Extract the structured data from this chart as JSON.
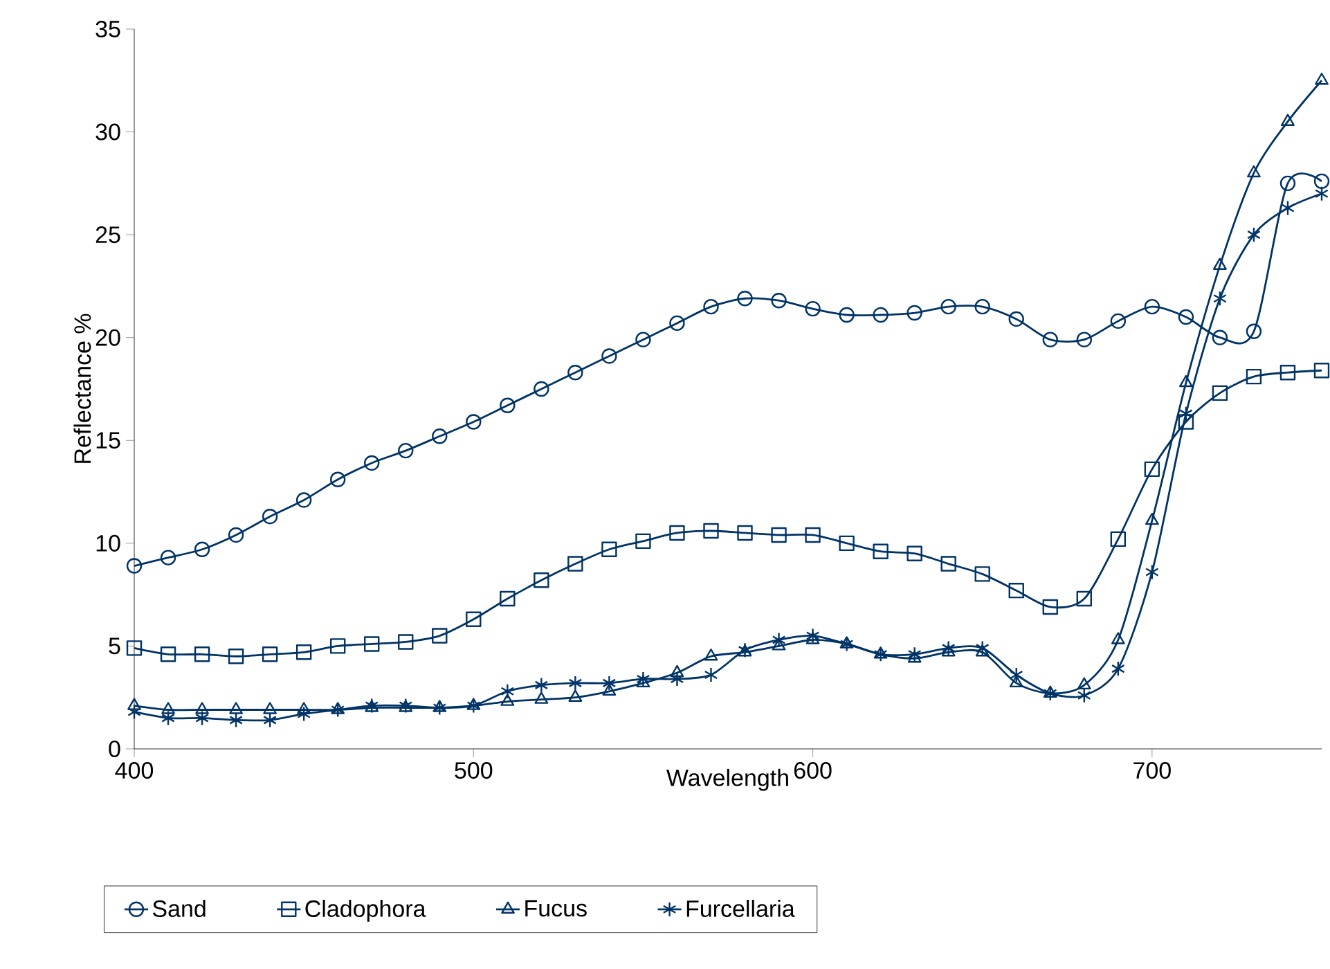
{
  "chart_data": {
    "type": "line",
    "xlabel": "Wavelength",
    "ylabel": "Reflectance %",
    "x": [
      400,
      410,
      420,
      430,
      440,
      450,
      460,
      470,
      480,
      490,
      500,
      510,
      520,
      530,
      540,
      550,
      560,
      570,
      580,
      590,
      600,
      610,
      620,
      630,
      640,
      650,
      660,
      670,
      680,
      690,
      700,
      710,
      720,
      730,
      740,
      750
    ],
    "xlim": [
      400,
      750
    ],
    "xticks": [
      400,
      500,
      600,
      700
    ],
    "ylim": [
      0,
      35
    ],
    "yticks": [
      0,
      5,
      10,
      15,
      20,
      25,
      30,
      35
    ],
    "grid": false,
    "legend": "bottom",
    "line_style": "solid",
    "series": [
      {
        "name": "Sand",
        "color": "#003366",
        "marker": "circle",
        "values": [
          8.9,
          9.3,
          9.7,
          10.4,
          11.3,
          12.1,
          13.1,
          13.9,
          14.5,
          15.2,
          15.9,
          16.7,
          17.5,
          18.3,
          19.1,
          19.9,
          20.7,
          21.5,
          21.9,
          21.8,
          21.4,
          21.1,
          21.1,
          21.2,
          21.5,
          21.5,
          20.9,
          19.9,
          19.9,
          20.8,
          21.5,
          21.0,
          20.0,
          20.3,
          27.5,
          27.6
        ]
      },
      {
        "name": "Cladophora",
        "color": "#003366",
        "marker": "square",
        "values": [
          4.9,
          4.6,
          4.6,
          4.5,
          4.6,
          4.7,
          5.0,
          5.1,
          5.2,
          5.5,
          6.3,
          7.3,
          8.2,
          9.0,
          9.7,
          10.1,
          10.5,
          10.6,
          10.5,
          10.4,
          10.4,
          10.0,
          9.6,
          9.5,
          9.0,
          8.5,
          7.7,
          6.9,
          7.3,
          10.2,
          13.6,
          15.9,
          17.3,
          18.1,
          18.3,
          18.4
        ]
      },
      {
        "name": "Fucus",
        "color": "#003366",
        "marker": "triangle",
        "values": [
          2.1,
          1.9,
          1.9,
          1.9,
          1.9,
          1.9,
          1.9,
          2.0,
          2.0,
          2.0,
          2.1,
          2.3,
          2.4,
          2.5,
          2.8,
          3.2,
          3.7,
          4.5,
          4.7,
          5.0,
          5.3,
          5.1,
          4.6,
          4.4,
          4.7,
          4.7,
          3.2,
          2.7,
          3.1,
          5.3,
          11.1,
          17.8,
          23.5,
          28.0,
          30.5,
          32.5
        ]
      },
      {
        "name": "Furcellaria",
        "color": "#003366",
        "marker": "cross",
        "values": [
          1.8,
          1.5,
          1.5,
          1.4,
          1.4,
          1.7,
          1.9,
          2.1,
          2.1,
          2.0,
          2.1,
          2.8,
          3.1,
          3.2,
          3.2,
          3.4,
          3.4,
          3.6,
          4.8,
          5.3,
          5.5,
          5.1,
          4.6,
          4.6,
          4.9,
          4.9,
          3.6,
          2.7,
          2.6,
          3.9,
          8.6,
          16.3,
          21.9,
          25.0,
          26.3,
          27.0
        ]
      }
    ]
  }
}
